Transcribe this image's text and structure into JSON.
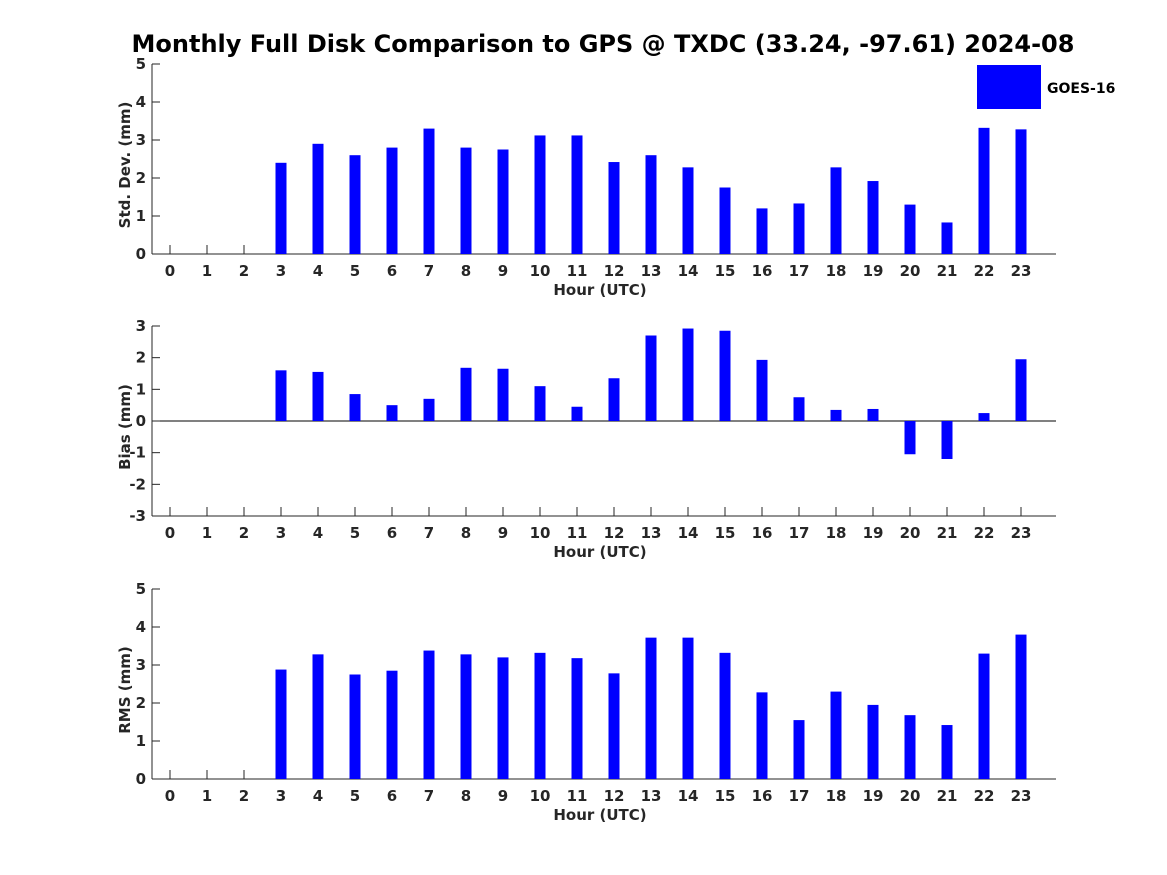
{
  "title": "Monthly Full Disk Comparison to GPS @ TXDC (33.24, -97.61) 2024-08",
  "legend": {
    "label": "GOES-16",
    "color": "#0000ff",
    "placement": "top-right"
  },
  "chart_data": [
    {
      "type": "bar",
      "xlabel": "Hour (UTC)",
      "ylabel": "Std. Dev. (mm)",
      "ylim": [
        0,
        5
      ],
      "yticks": [
        "0",
        "1",
        "2",
        "3",
        "4",
        "5"
      ],
      "categories": [
        "0",
        "1",
        "2",
        "3",
        "4",
        "5",
        "6",
        "7",
        "8",
        "9",
        "10",
        "11",
        "12",
        "13",
        "14",
        "15",
        "16",
        "17",
        "18",
        "19",
        "20",
        "21",
        "22",
        "23"
      ],
      "series": [
        {
          "name": "GOES-16",
          "color": "#0000ff",
          "values": [
            null,
            null,
            null,
            2.4,
            2.9,
            2.6,
            2.8,
            3.3,
            2.8,
            2.75,
            3.12,
            3.12,
            2.42,
            2.6,
            2.28,
            1.75,
            1.2,
            1.33,
            2.28,
            1.92,
            1.3,
            0.83,
            3.32,
            3.28
          ]
        }
      ]
    },
    {
      "type": "bar",
      "xlabel": "Hour (UTC)",
      "ylabel": "Bias (mm)",
      "ylim": [
        -3,
        3
      ],
      "yticks": [
        "-3",
        "-2",
        "-1",
        "0",
        "1",
        "2",
        "3"
      ],
      "categories": [
        "0",
        "1",
        "2",
        "3",
        "4",
        "5",
        "6",
        "7",
        "8",
        "9",
        "10",
        "11",
        "12",
        "13",
        "14",
        "15",
        "16",
        "17",
        "18",
        "19",
        "20",
        "21",
        "22",
        "23"
      ],
      "series": [
        {
          "name": "GOES-16",
          "color": "#0000ff",
          "values": [
            null,
            null,
            null,
            1.6,
            1.55,
            0.85,
            0.5,
            0.7,
            1.68,
            1.65,
            1.1,
            0.45,
            1.35,
            2.7,
            2.92,
            2.85,
            1.93,
            0.75,
            0.35,
            0.38,
            -1.05,
            -1.2,
            0.25,
            1.95
          ]
        }
      ]
    },
    {
      "type": "bar",
      "xlabel": "Hour (UTC)",
      "ylabel": "RMS (mm)",
      "ylim": [
        0,
        5
      ],
      "yticks": [
        "0",
        "1",
        "2",
        "3",
        "4",
        "5"
      ],
      "categories": [
        "0",
        "1",
        "2",
        "3",
        "4",
        "5",
        "6",
        "7",
        "8",
        "9",
        "10",
        "11",
        "12",
        "13",
        "14",
        "15",
        "16",
        "17",
        "18",
        "19",
        "20",
        "21",
        "22",
        "23"
      ],
      "series": [
        {
          "name": "GOES-16",
          "color": "#0000ff",
          "values": [
            null,
            null,
            null,
            2.88,
            3.28,
            2.75,
            2.85,
            3.38,
            3.28,
            3.2,
            3.32,
            3.18,
            2.78,
            3.72,
            3.72,
            3.32,
            2.28,
            1.55,
            2.3,
            1.95,
            1.68,
            1.42,
            3.3,
            3.8
          ]
        }
      ]
    }
  ]
}
